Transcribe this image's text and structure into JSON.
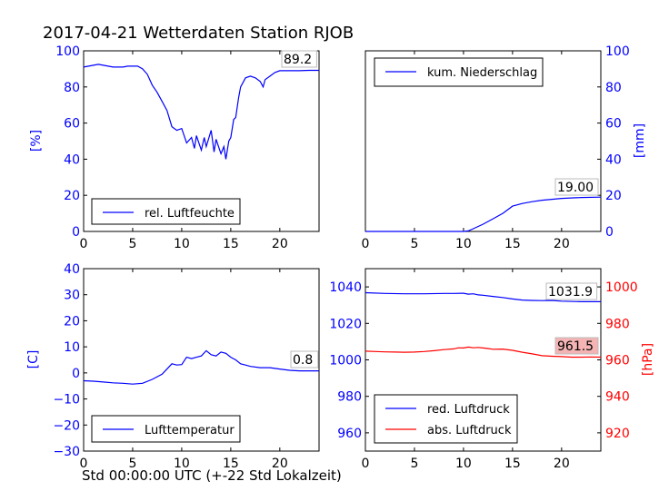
{
  "title": "2017-04-21 Wetterdaten Station RJOB",
  "x_caption": "Std 00:00:00 UTC (+-22 Std Lokalzeit)",
  "chart_data": [
    {
      "type": "line",
      "ylabel": "[%]",
      "ylim": [
        0,
        100
      ],
      "yticks": [
        0,
        20,
        40,
        60,
        80,
        100
      ],
      "xlim": [
        0,
        24
      ],
      "xticks": [
        0,
        5,
        10,
        15,
        20
      ],
      "legend": "lower-left",
      "value_box": "89.2",
      "series": [
        {
          "name": "rel. Luftfeuchte",
          "color": "#0000ff",
          "x": [
            0,
            1,
            1.5,
            2,
            3,
            4,
            4.5,
            5.5,
            6,
            6.5,
            7,
            7.5,
            8,
            8.5,
            9,
            9.5,
            10,
            10.5,
            11,
            11.3,
            11.5,
            12,
            12.3,
            12.5,
            13,
            13.3,
            13.5,
            14,
            14.3,
            14.5,
            14.8,
            15,
            15.3,
            15.5,
            15.8,
            16,
            16.5,
            17,
            17.5,
            18,
            18.3,
            18.5,
            19,
            19.5,
            20,
            21,
            22,
            23,
            24
          ],
          "y": [
            91,
            92,
            92.5,
            92,
            91,
            91,
            91.5,
            91.5,
            90,
            87,
            81,
            77,
            72,
            67,
            58,
            56,
            57,
            49,
            52,
            46,
            53,
            45,
            52,
            47,
            56,
            44,
            51,
            43,
            47,
            40,
            50,
            52,
            62,
            63,
            74,
            80,
            85,
            86,
            85,
            83,
            80,
            84,
            86,
            88,
            89,
            89,
            89,
            89.2,
            89.2
          ]
        }
      ]
    },
    {
      "type": "line",
      "ylabel": "[mm]",
      "ylim": [
        0,
        100
      ],
      "yticks": [
        0,
        20,
        40,
        60,
        80,
        100
      ],
      "xlim": [
        0,
        24
      ],
      "xticks": [
        0,
        5,
        10,
        15,
        20
      ],
      "legend": "top-left",
      "value_box": "19.00",
      "series": [
        {
          "name": "kum. Niederschlag",
          "color": "#0000ff",
          "x": [
            0,
            10,
            10.5,
            11,
            12,
            13,
            14,
            14.5,
            15,
            16,
            17,
            18,
            20,
            22,
            24
          ],
          "y": [
            0,
            0,
            0.3,
            1.5,
            4,
            7,
            10,
            12,
            14,
            15.5,
            16.5,
            17.3,
            18.3,
            18.8,
            19
          ]
        }
      ]
    },
    {
      "type": "line",
      "ylabel": "[C]",
      "ylim": [
        -30,
        40
      ],
      "yticks": [
        -30,
        -20,
        -10,
        0,
        10,
        20,
        30,
        40
      ],
      "xlim": [
        0,
        24
      ],
      "xticks": [
        0,
        5,
        10,
        15,
        20
      ],
      "legend": "lower-left",
      "value_box": "0.8",
      "series": [
        {
          "name": "Lufttemperatur",
          "color": "#0000ff",
          "x": [
            0,
            1,
            2,
            3,
            4,
            5,
            6,
            7,
            8,
            8.5,
            9,
            9.5,
            10,
            10.5,
            11,
            11.5,
            12,
            12.5,
            13,
            13.5,
            14,
            14.5,
            15,
            15.5,
            16,
            16.5,
            17,
            18,
            19,
            20,
            21,
            22,
            23,
            24
          ],
          "y": [
            -3,
            -3.2,
            -3.5,
            -3.8,
            -4,
            -4.3,
            -4,
            -2.5,
            -0.5,
            1.5,
            3.5,
            3,
            3.2,
            6,
            5.5,
            6,
            6.5,
            8.5,
            7,
            6.5,
            8,
            7.5,
            6,
            5,
            3.5,
            3,
            2.5,
            2,
            2,
            1.5,
            1,
            0.8,
            0.8,
            0.8
          ]
        }
      ]
    },
    {
      "type": "line",
      "ylabel": "[hPa]",
      "ylim": [
        950,
        1050
      ],
      "yticks": [
        960,
        980,
        1000,
        1020,
        1040
      ],
      "ylim_right": [
        910,
        1010
      ],
      "yticks_right": [
        920,
        940,
        960,
        980,
        1000
      ],
      "xlim": [
        0,
        24
      ],
      "xticks": [
        0,
        5,
        10,
        15,
        20
      ],
      "legend": "lower-left",
      "value_box_1": "1031.9",
      "value_box_2": "961.5",
      "series": [
        {
          "name": "red. Luftdruck",
          "color": "#0000ff",
          "axis": "left",
          "x": [
            0,
            2,
            4,
            6,
            8,
            9,
            10,
            10.5,
            11,
            11.5,
            12,
            13,
            14,
            15,
            16,
            17,
            18,
            19,
            20,
            22,
            24
          ],
          "y": [
            1036.8,
            1036.4,
            1036.2,
            1036.2,
            1036.4,
            1036.4,
            1036.5,
            1036,
            1036.2,
            1035.6,
            1035.4,
            1034.8,
            1034.2,
            1033.4,
            1032.8,
            1032.6,
            1032.5,
            1032.6,
            1032.2,
            1031.9,
            1031.9
          ]
        },
        {
          "name": "abs. Luftdruck",
          "color": "#ff0000",
          "axis": "right",
          "x": [
            0,
            1,
            2,
            3,
            4,
            5,
            6,
            7,
            8,
            9,
            9.5,
            10,
            10.5,
            11,
            11.5,
            12,
            12.5,
            13,
            14,
            15,
            16,
            17,
            18,
            19,
            20,
            21,
            22,
            23,
            24
          ],
          "y": [
            964.8,
            964.6,
            964.4,
            964.3,
            964.2,
            964.3,
            964.6,
            965,
            965.6,
            966,
            966.6,
            966.5,
            967,
            966.6,
            966.8,
            966.5,
            966.2,
            965.8,
            965.9,
            965.2,
            964.2,
            963.3,
            962.3,
            962,
            961.8,
            961.5,
            961.5,
            961.6,
            961.5
          ]
        }
      ]
    }
  ]
}
